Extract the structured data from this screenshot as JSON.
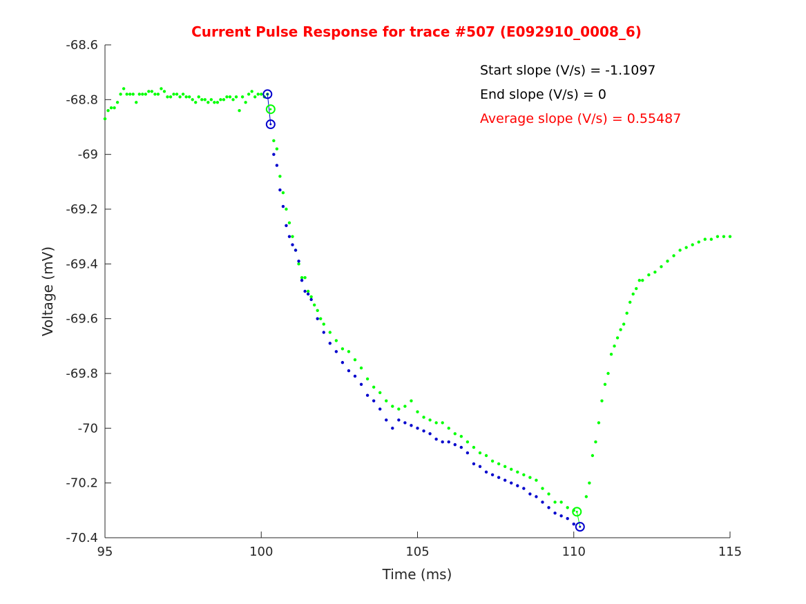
{
  "chart_data": {
    "type": "scatter",
    "title": "Current Pulse Response for trace #507 (E092910_0008_6)",
    "title_color": "#ff0000",
    "xlabel": "Time (ms)",
    "ylabel": "Voltage (mV)",
    "xlim": [
      95,
      115
    ],
    "ylim": [
      -70.4,
      -68.6
    ],
    "xticks": [
      95,
      100,
      105,
      110,
      115
    ],
    "xtick_labels": [
      "95",
      "100",
      "105",
      "110",
      "115"
    ],
    "yticks": [
      -68.6,
      -68.8,
      -69,
      -69.2,
      -69.4,
      -69.6,
      -69.8,
      -70,
      -70.2,
      -70.4
    ],
    "ytick_labels": [
      "-68.6",
      "-68.8",
      "-69",
      "-69.2",
      "-69.4",
      "-69.6",
      "-69.8",
      "-70",
      "-70.2",
      "-70.4"
    ],
    "grid": false,
    "annotations": [
      {
        "text": "Start slope (V/s) = -1.1097",
        "color": "#000000"
      },
      {
        "text": "End slope (V/s) = 0",
        "color": "#000000"
      },
      {
        "text": "Average slope (V/s) = 0.55487",
        "color": "#ff0000"
      }
    ],
    "series": [
      {
        "color": "#00ff00",
        "marker": "dot",
        "x": [
          95.0,
          95.1,
          95.2,
          95.3,
          95.4,
          95.5,
          95.6,
          95.7,
          95.8,
          95.9,
          96.0,
          96.1,
          96.2,
          96.3,
          96.4,
          96.5,
          96.6,
          96.7,
          96.8,
          96.9,
          97.0,
          97.1,
          97.2,
          97.3,
          97.4,
          97.5,
          97.6,
          97.7,
          97.8,
          97.9,
          98.0,
          98.1,
          98.2,
          98.3,
          98.4,
          98.5,
          98.6,
          98.7,
          98.8,
          98.9,
          99.0,
          99.1,
          99.2,
          99.3,
          99.4,
          99.5,
          99.6,
          99.7,
          99.8,
          99.9,
          100.0,
          100.1,
          100.2,
          100.4,
          100.5,
          100.6,
          100.7,
          100.8,
          100.9,
          101.0,
          101.1,
          101.2,
          101.3,
          101.4,
          101.5,
          101.6,
          101.7,
          101.8,
          101.9,
          102.0,
          102.2,
          102.4,
          102.6,
          102.8,
          103.0,
          103.2,
          103.4,
          103.6,
          103.8,
          104.0,
          104.2,
          104.4,
          104.6,
          104.8,
          105.0,
          105.2,
          105.4,
          105.6,
          105.8,
          106.0,
          106.2,
          106.4,
          106.6,
          106.8,
          107.0,
          107.2,
          107.4,
          107.6,
          107.8,
          108.0,
          108.2,
          108.4,
          108.6,
          108.8,
          109.0,
          109.2,
          109.4,
          109.6,
          109.8,
          110.0,
          110.4,
          110.5,
          110.6,
          110.7,
          110.8,
          110.9,
          111.0,
          111.1,
          111.2,
          111.3,
          111.4,
          111.5,
          111.6,
          111.7,
          111.8,
          111.9,
          112.0,
          112.1,
          112.2,
          112.4,
          112.6,
          112.8,
          113.0,
          113.2,
          113.4,
          113.6,
          113.8,
          114.0,
          114.2,
          114.4,
          114.6,
          114.8,
          115.0
        ],
        "y": [
          -68.87,
          -68.84,
          -68.83,
          -68.83,
          -68.81,
          -68.78,
          -68.76,
          -68.78,
          -68.78,
          -68.78,
          -68.81,
          -68.78,
          -68.78,
          -68.78,
          -68.77,
          -68.77,
          -68.78,
          -68.78,
          -68.76,
          -68.77,
          -68.79,
          -68.79,
          -68.78,
          -68.78,
          -68.79,
          -68.78,
          -68.79,
          -68.79,
          -68.8,
          -68.81,
          -68.79,
          -68.8,
          -68.8,
          -68.81,
          -68.8,
          -68.81,
          -68.81,
          -68.8,
          -68.8,
          -68.79,
          -68.79,
          -68.8,
          -68.79,
          -68.84,
          -68.79,
          -68.81,
          -68.78,
          -68.77,
          -68.79,
          -68.78,
          -68.78,
          -68.79,
          -68.78,
          -68.95,
          -68.98,
          -69.08,
          -69.14,
          -69.2,
          -69.25,
          -69.3,
          -69.35,
          -69.4,
          -69.45,
          -69.45,
          -69.5,
          -69.52,
          -69.55,
          -69.57,
          -69.6,
          -69.62,
          -69.65,
          -69.68,
          -69.71,
          -69.72,
          -69.75,
          -69.78,
          -69.82,
          -69.85,
          -69.87,
          -69.9,
          -69.92,
          -69.93,
          -69.92,
          -69.9,
          -69.94,
          -69.96,
          -69.97,
          -69.98,
          -69.98,
          -70.0,
          -70.02,
          -70.03,
          -70.05,
          -70.07,
          -70.09,
          -70.1,
          -70.12,
          -70.13,
          -70.14,
          -70.15,
          -70.16,
          -70.17,
          -70.18,
          -70.19,
          -70.22,
          -70.24,
          -70.27,
          -70.27,
          -70.29,
          -70.3,
          -70.25,
          -70.2,
          -70.1,
          -70.05,
          -69.98,
          -69.9,
          -69.84,
          -69.8,
          -69.73,
          -69.7,
          -69.67,
          -69.64,
          -69.62,
          -69.58,
          -69.54,
          -69.51,
          -69.49,
          -69.46,
          -69.46,
          -69.44,
          -69.43,
          -69.41,
          -69.39,
          -69.37,
          -69.35,
          -69.34,
          -69.33,
          -69.32,
          -69.31,
          -69.31,
          -69.3,
          -69.3,
          -69.3
        ]
      },
      {
        "color": "#0000cc",
        "marker": "dot",
        "x": [
          100.4,
          100.5,
          100.6,
          100.7,
          100.8,
          100.9,
          101.0,
          101.1,
          101.2,
          101.3,
          101.4,
          101.5,
          101.6,
          101.8,
          102.0,
          102.2,
          102.4,
          102.6,
          102.8,
          103.0,
          103.2,
          103.4,
          103.6,
          103.8,
          104.0,
          104.2,
          104.4,
          104.6,
          104.8,
          105.0,
          105.2,
          105.4,
          105.6,
          105.8,
          106.0,
          106.2,
          106.4,
          106.6,
          106.8,
          107.0,
          107.2,
          107.4,
          107.6,
          107.8,
          108.0,
          108.2,
          108.4,
          108.6,
          108.8,
          109.0,
          109.2,
          109.4,
          109.6,
          109.8,
          110.0
        ],
        "y": [
          -69.0,
          -69.04,
          -69.13,
          -69.19,
          -69.26,
          -69.3,
          -69.33,
          -69.35,
          -69.39,
          -69.46,
          -69.5,
          -69.51,
          -69.53,
          -69.6,
          -69.65,
          -69.69,
          -69.72,
          -69.76,
          -69.79,
          -69.81,
          -69.84,
          -69.88,
          -69.9,
          -69.93,
          -69.97,
          -70.0,
          -69.97,
          -69.98,
          -69.99,
          -70.0,
          -70.01,
          -70.02,
          -70.04,
          -70.05,
          -70.05,
          -70.06,
          -70.07,
          -70.09,
          -70.13,
          -70.14,
          -70.16,
          -70.17,
          -70.18,
          -70.19,
          -70.2,
          -70.21,
          -70.22,
          -70.24,
          -70.25,
          -70.27,
          -70.29,
          -70.31,
          -70.32,
          -70.33,
          -70.35
        ]
      }
    ],
    "markers": [
      {
        "color": "#0000cc",
        "x": 100.2,
        "y": -68.78
      },
      {
        "color": "#00ff00",
        "x": 100.3,
        "y": -68.835
      },
      {
        "color": "#0000cc",
        "x": 100.3,
        "y": -68.89
      },
      {
        "color": "#00ff00",
        "x": 110.1,
        "y": -70.305
      },
      {
        "color": "#0000cc",
        "x": 110.2,
        "y": -70.36
      }
    ],
    "lines": [
      {
        "color": "#0000cc",
        "x": [
          100.2,
          100.3
        ],
        "y": [
          -68.78,
          -68.89
        ]
      },
      {
        "color": "#00ff00",
        "x": [
          110.1,
          110.2
        ],
        "y": [
          -70.305,
          -70.36
        ]
      }
    ]
  }
}
